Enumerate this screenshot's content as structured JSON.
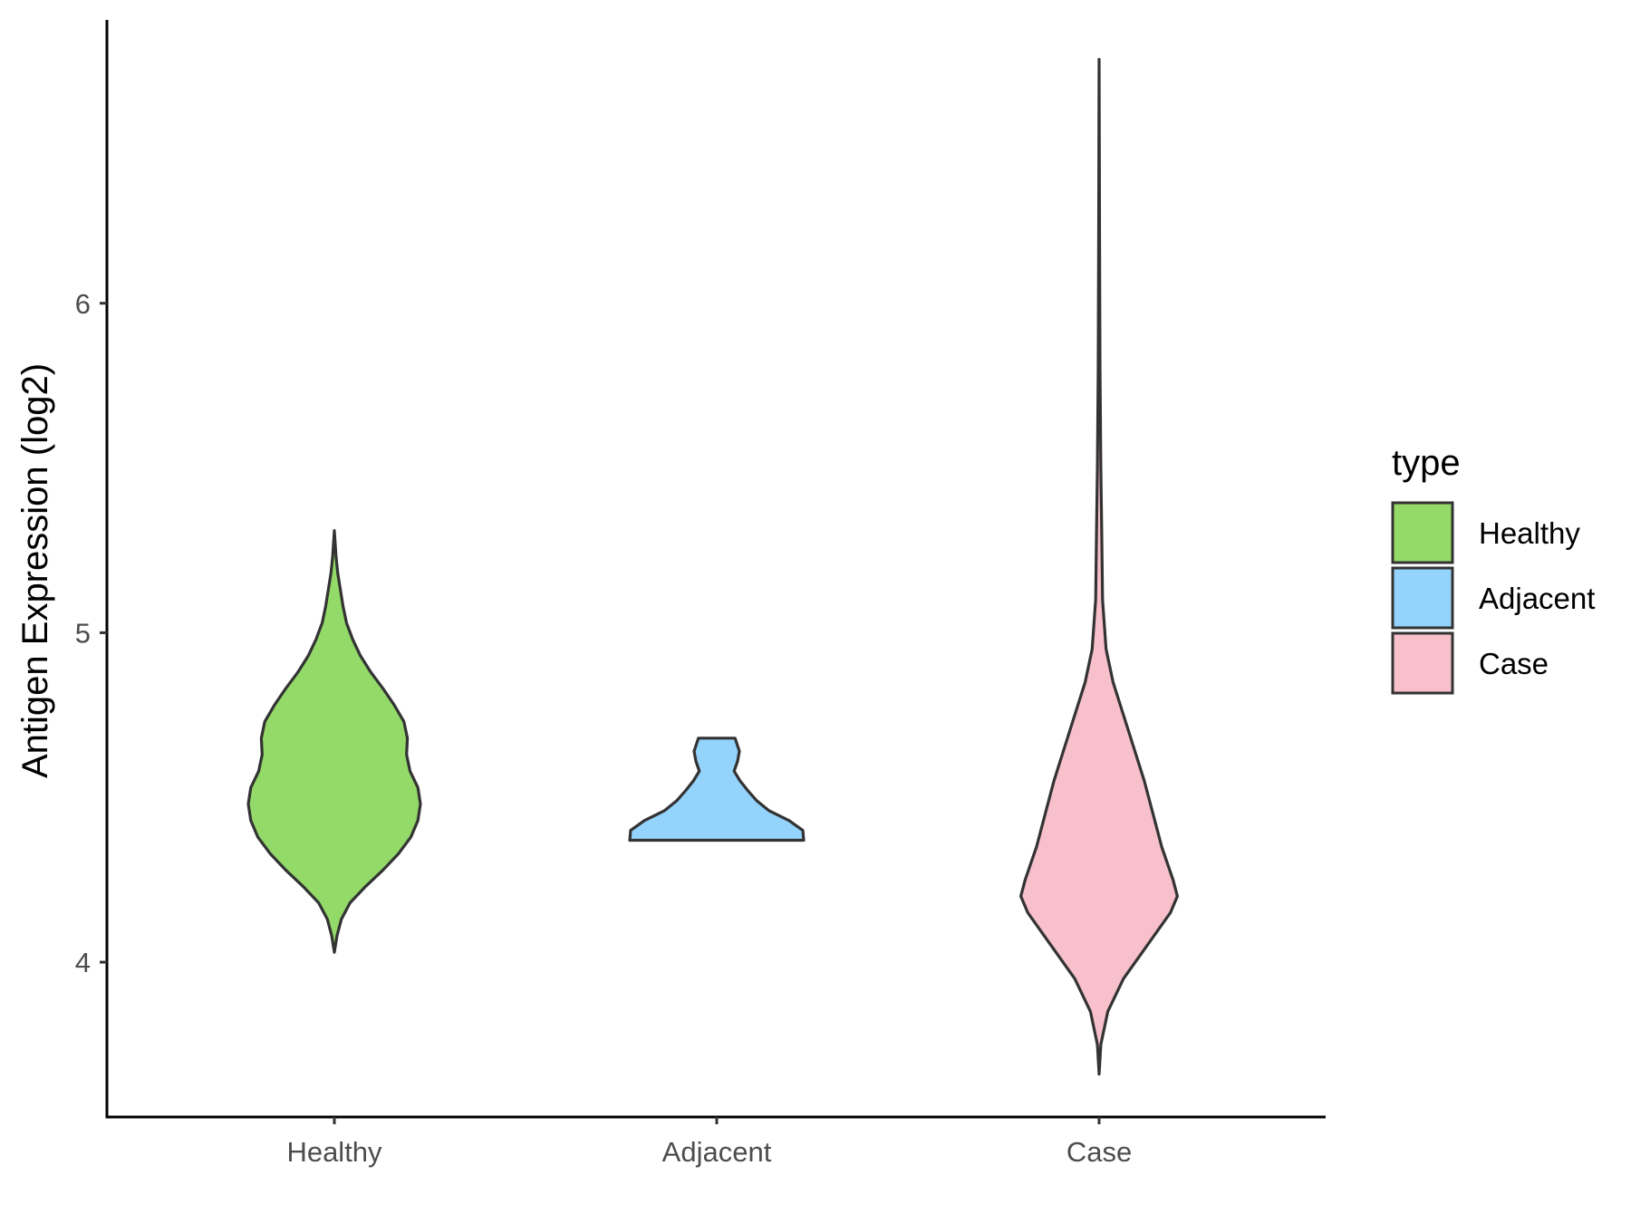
{
  "chart_data": {
    "type": "violin",
    "title": "",
    "xlabel": "",
    "ylabel": "Antigen Expression (log2)",
    "ylim": [
      3.53,
      6.86
    ],
    "yticks": [
      4,
      5,
      6
    ],
    "categories": [
      "Healthy",
      "Adjacent",
      "Case"
    ],
    "grid": false,
    "legend": {
      "title": "type",
      "position": "right",
      "items": [
        {
          "label": "Healthy",
          "color": "#93da69"
        },
        {
          "label": "Adjacent",
          "color": "#93d3fc"
        },
        {
          "label": "Case",
          "color": "#f7c0cb"
        }
      ]
    },
    "series": [
      {
        "name": "Healthy",
        "color": "#93da69",
        "min": 4.03,
        "max": 5.31,
        "density": [
          [
            4.03,
            0.0
          ],
          [
            4.08,
            0.03
          ],
          [
            4.13,
            0.08
          ],
          [
            4.18,
            0.18
          ],
          [
            4.23,
            0.36
          ],
          [
            4.28,
            0.56
          ],
          [
            4.33,
            0.74
          ],
          [
            4.38,
            0.88
          ],
          [
            4.43,
            0.96
          ],
          [
            4.48,
            0.99
          ],
          [
            4.53,
            0.96
          ],
          [
            4.58,
            0.87
          ],
          [
            4.63,
            0.83
          ],
          [
            4.68,
            0.84
          ],
          [
            4.73,
            0.8
          ],
          [
            4.78,
            0.69
          ],
          [
            4.83,
            0.56
          ],
          [
            4.88,
            0.42
          ],
          [
            4.93,
            0.3
          ],
          [
            4.98,
            0.21
          ],
          [
            5.03,
            0.14
          ],
          [
            5.08,
            0.1
          ],
          [
            5.13,
            0.07
          ],
          [
            5.18,
            0.04
          ],
          [
            5.23,
            0.02
          ],
          [
            5.31,
            0.0
          ]
        ]
      },
      {
        "name": "Adjacent",
        "color": "#93d3fc",
        "min": 4.37,
        "max": 4.68,
        "density": [
          [
            4.37,
            1.0
          ],
          [
            4.4,
            0.99
          ],
          [
            4.43,
            0.83
          ],
          [
            4.46,
            0.6
          ],
          [
            4.49,
            0.46
          ],
          [
            4.52,
            0.36
          ],
          [
            4.55,
            0.27
          ],
          [
            4.58,
            0.2
          ],
          [
            4.61,
            0.24
          ],
          [
            4.64,
            0.26
          ],
          [
            4.68,
            0.21
          ]
        ]
      },
      {
        "name": "Case",
        "color": "#f7c0cb",
        "min": 3.66,
        "max": 6.74,
        "density": [
          [
            3.66,
            0.0
          ],
          [
            3.75,
            0.02
          ],
          [
            3.85,
            0.1
          ],
          [
            3.95,
            0.28
          ],
          [
            4.05,
            0.55
          ],
          [
            4.15,
            0.82
          ],
          [
            4.2,
            0.9
          ],
          [
            4.25,
            0.85
          ],
          [
            4.35,
            0.72
          ],
          [
            4.45,
            0.62
          ],
          [
            4.55,
            0.52
          ],
          [
            4.65,
            0.4
          ],
          [
            4.75,
            0.28
          ],
          [
            4.85,
            0.16
          ],
          [
            4.95,
            0.08
          ],
          [
            5.1,
            0.04
          ],
          [
            5.3,
            0.03
          ],
          [
            5.5,
            0.02
          ],
          [
            5.8,
            0.01
          ],
          [
            6.2,
            0.005
          ],
          [
            6.74,
            0.0
          ]
        ]
      }
    ]
  }
}
